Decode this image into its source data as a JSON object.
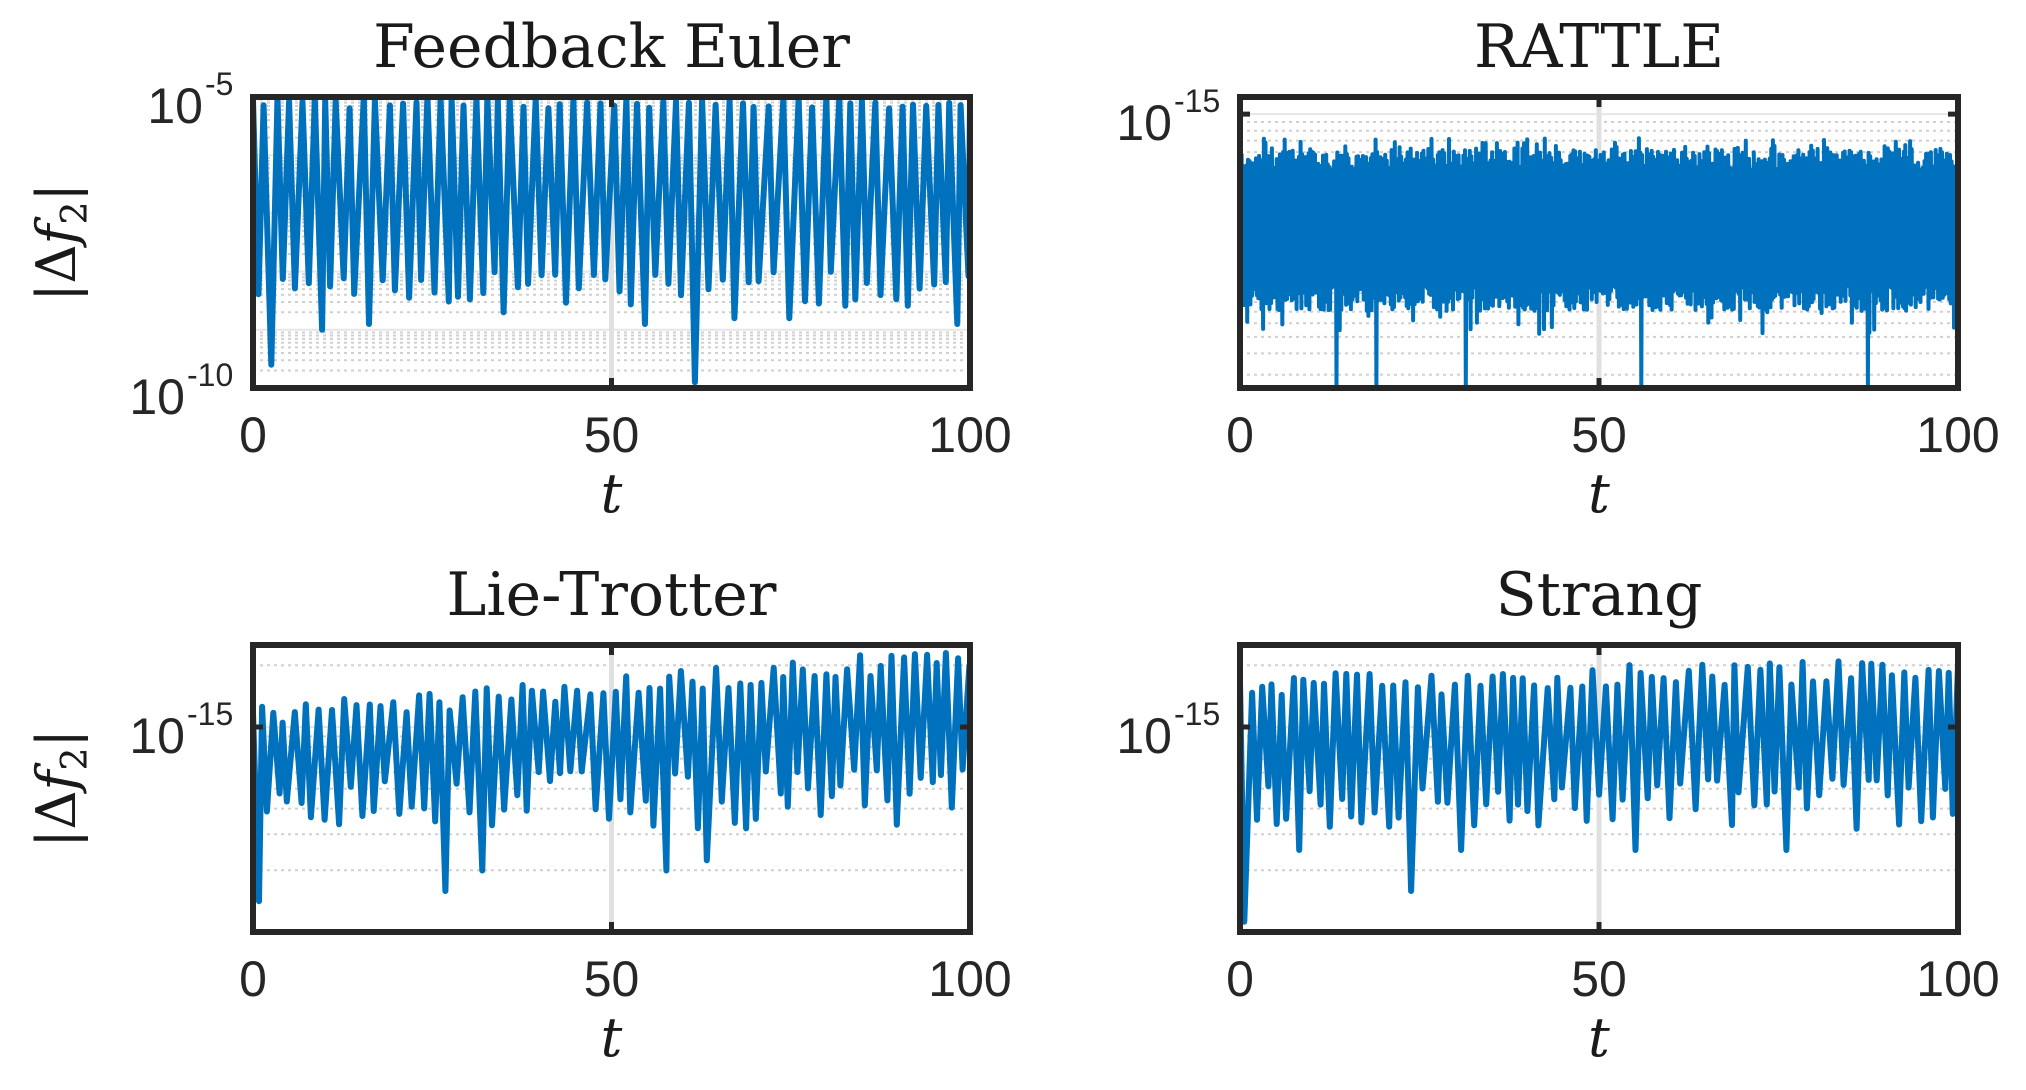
{
  "chart_data": [
    {
      "type": "line",
      "title": "Feedback Euler",
      "xlabel": "t",
      "ylabel": "|Δf",
      "ylabel_sub": "2",
      "ylabel_close": "|",
      "yscale": "log",
      "xlim": [
        0,
        100
      ],
      "ylim_exp": [
        -10,
        -5
      ],
      "xticks": [
        {
          "v": 0,
          "label": "0"
        },
        {
          "v": 50,
          "label": "50"
        },
        {
          "v": 100,
          "label": "100"
        }
      ],
      "yticks": [
        {
          "exp": -5,
          "label_base": "10",
          "label_exp": "-5"
        },
        {
          "exp": -10,
          "label_base": "10",
          "label_exp": "-10"
        }
      ],
      "grid": "minor-dotted",
      "series": [
        {
          "color": "#0072BD",
          "pattern": "oscillation",
          "top_exp": -5.0,
          "top_jitter": 0.1,
          "trough_exp_range": [
            -8.6,
            -8.0
          ],
          "deep_troughs": [
            {
              "x": 3.2,
              "exp": -9.6
            },
            {
              "x": 61.0,
              "exp": -9.9
            },
            {
              "x": 10.1,
              "exp": -9.0
            },
            {
              "x": 17.0,
              "exp": -8.9
            },
            {
              "x": 35.3,
              "exp": -8.7
            },
            {
              "x": 54.0,
              "exp": -8.9
            },
            {
              "x": 67.5,
              "exp": -8.8
            },
            {
              "x": 75.0,
              "exp": -8.8
            },
            {
              "x": 98.7,
              "exp": -8.9
            }
          ],
          "period": 1.78,
          "seed": 11
        }
      ]
    },
    {
      "type": "line",
      "title": "RATTLE",
      "xlabel": "t",
      "ylabel": "|Δf",
      "ylabel_sub": "2",
      "ylabel_close": "|",
      "yscale": "log",
      "xlim": [
        0,
        100
      ],
      "ylim_exp": [
        -16.6,
        -14.9
      ],
      "xticks": [
        {
          "v": 0,
          "label": "0"
        },
        {
          "v": 50,
          "label": "50"
        },
        {
          "v": 100,
          "label": "100"
        }
      ],
      "yticks": [
        {
          "exp": -15,
          "label_base": "10",
          "label_exp": "-15"
        }
      ],
      "grid": "minor-dotted",
      "series": [
        {
          "color": "#0072BD",
          "pattern": "noise",
          "band_top_exp": [
            -15.33,
            -15.2
          ],
          "band_bottom_exp": [
            -16.15,
            -16.0
          ],
          "mid_exp": -15.7,
          "deep_troughs": [
            {
              "x": 13.5,
              "exp": -16.6
            },
            {
              "x": 19.0,
              "exp": -16.6
            },
            {
              "x": 31.5,
              "exp": -16.6
            },
            {
              "x": 56.0,
              "exp": -16.6
            },
            {
              "x": 87.5,
              "exp": -16.6
            }
          ],
          "seed": 23
        }
      ]
    },
    {
      "type": "line",
      "title": "Lie-Trotter",
      "xlabel": "t",
      "ylabel": "|Δf",
      "ylabel_sub": "2",
      "ylabel_close": "|",
      "yscale": "log",
      "xlim": [
        0,
        100
      ],
      "ylim_exp": [
        -16.0,
        -14.6
      ],
      "xticks": [
        {
          "v": 0,
          "label": "0"
        },
        {
          "v": 50,
          "label": "50"
        },
        {
          "v": 100,
          "label": "100"
        }
      ],
      "yticks": [
        {
          "exp": -15,
          "label_base": "10",
          "label_exp": "-15"
        }
      ],
      "grid": "minor-dotted",
      "series": [
        {
          "color": "#0072BD",
          "pattern": "oscillation",
          "top_exp_start": -14.9,
          "top_exp_end": -14.6,
          "top_jitter": 0.06,
          "trough_exp_range": [
            -15.5,
            -15.2
          ],
          "deep_troughs": [
            {
              "x": 1.0,
              "exp": -15.85
            },
            {
              "x": 26.7,
              "exp": -15.8
            },
            {
              "x": 32.0,
              "exp": -15.7
            },
            {
              "x": 57.0,
              "exp": -15.7
            },
            {
              "x": 63.3,
              "exp": -15.65
            },
            {
              "x": 72.5,
              "exp": -15.65
            }
          ],
          "period": 1.55,
          "seed": 37
        }
      ]
    },
    {
      "type": "line",
      "title": "Strang",
      "xlabel": "t",
      "ylabel": "|Δf",
      "ylabel_sub": "2",
      "ylabel_close": "|",
      "yscale": "log",
      "xlim": [
        0,
        100
      ],
      "ylim_exp": [
        -16.0,
        -14.6
      ],
      "xticks": [
        {
          "v": 0,
          "label": "0"
        },
        {
          "v": 50,
          "label": "50"
        },
        {
          "v": 100,
          "label": "100"
        }
      ],
      "yticks": [
        {
          "exp": -15,
          "label_base": "10",
          "label_exp": "-15"
        }
      ],
      "grid": "minor-dotted",
      "series": [
        {
          "color": "#0072BD",
          "pattern": "oscillation",
          "top_exp_start": -14.75,
          "top_exp_end": -14.65,
          "top_jitter": 0.06,
          "trough_exp_range": [
            -15.5,
            -15.25
          ],
          "deep_troughs": [
            {
              "x": 0.5,
              "exp": -15.95
            },
            {
              "x": 23.6,
              "exp": -15.8
            },
            {
              "x": 8.0,
              "exp": -15.6
            },
            {
              "x": 31.0,
              "exp": -15.6
            },
            {
              "x": 56.0,
              "exp": -15.6
            },
            {
              "x": 76.0,
              "exp": -15.6
            }
          ],
          "period": 1.6,
          "seed": 53
        }
      ]
    }
  ]
}
